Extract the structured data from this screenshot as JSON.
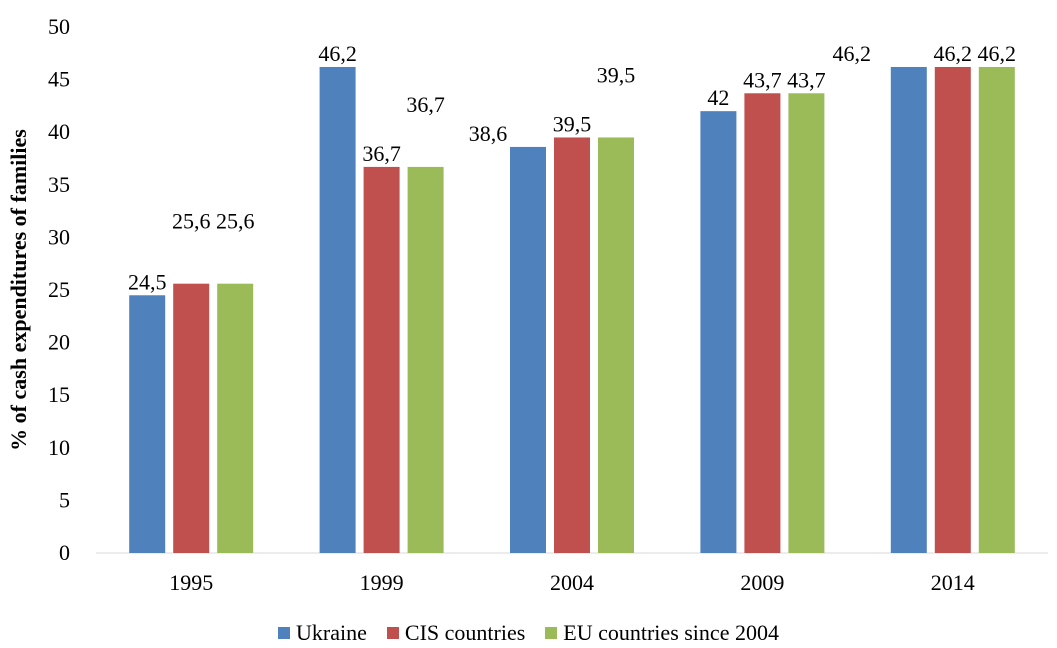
{
  "chart_data": {
    "type": "bar",
    "title": "",
    "xlabel": "",
    "ylabel": "% of cash expenditures of families",
    "ylim": [
      0,
      50
    ],
    "yticks": [
      0,
      5,
      10,
      15,
      20,
      25,
      30,
      35,
      40,
      45,
      50
    ],
    "categories": [
      "1995",
      "1999",
      "2004",
      "2009",
      "2014"
    ],
    "series": [
      {
        "name": "Ukraine",
        "color": "#4f81bd",
        "values": [
          24.5,
          46.2,
          38.6,
          42,
          46.2
        ],
        "labels": [
          "24,5",
          "46,2",
          "38,6",
          "42",
          "46,2"
        ]
      },
      {
        "name": "CIS countries",
        "color": "#c0504d",
        "values": [
          25.6,
          36.7,
          39.5,
          43.7,
          46.2
        ],
        "labels": [
          "25,6",
          "36,7",
          "39,5",
          "43,7",
          "46,2"
        ]
      },
      {
        "name": "EU countries since 2004",
        "color": "#9bbb59",
        "values": [
          25.6,
          36.7,
          39.5,
          43.7,
          46.2
        ],
        "labels": [
          "25,6",
          "36,7",
          "39,5",
          "43,7",
          "46,2"
        ]
      }
    ],
    "legend_position": "bottom",
    "grid": false
  }
}
